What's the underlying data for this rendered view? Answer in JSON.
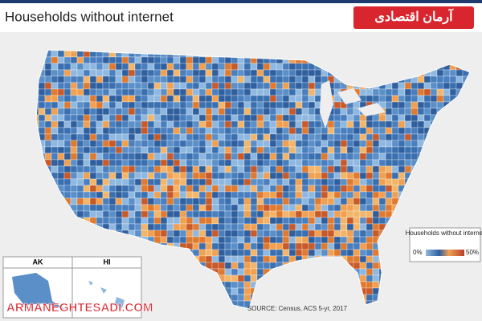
{
  "header": {
    "title": "Households without internet",
    "logo": "آرمان اقتصادی"
  },
  "legend": {
    "title": "Households without internet",
    "min_label": "0%",
    "max_label": "50%"
  },
  "insets": {
    "alaska": "AK",
    "hawaii": "HI"
  },
  "source": "SOURCE: Census, ACS 5-yr, 2017",
  "watermark": "ARMANEGHTESADI.COM"
}
